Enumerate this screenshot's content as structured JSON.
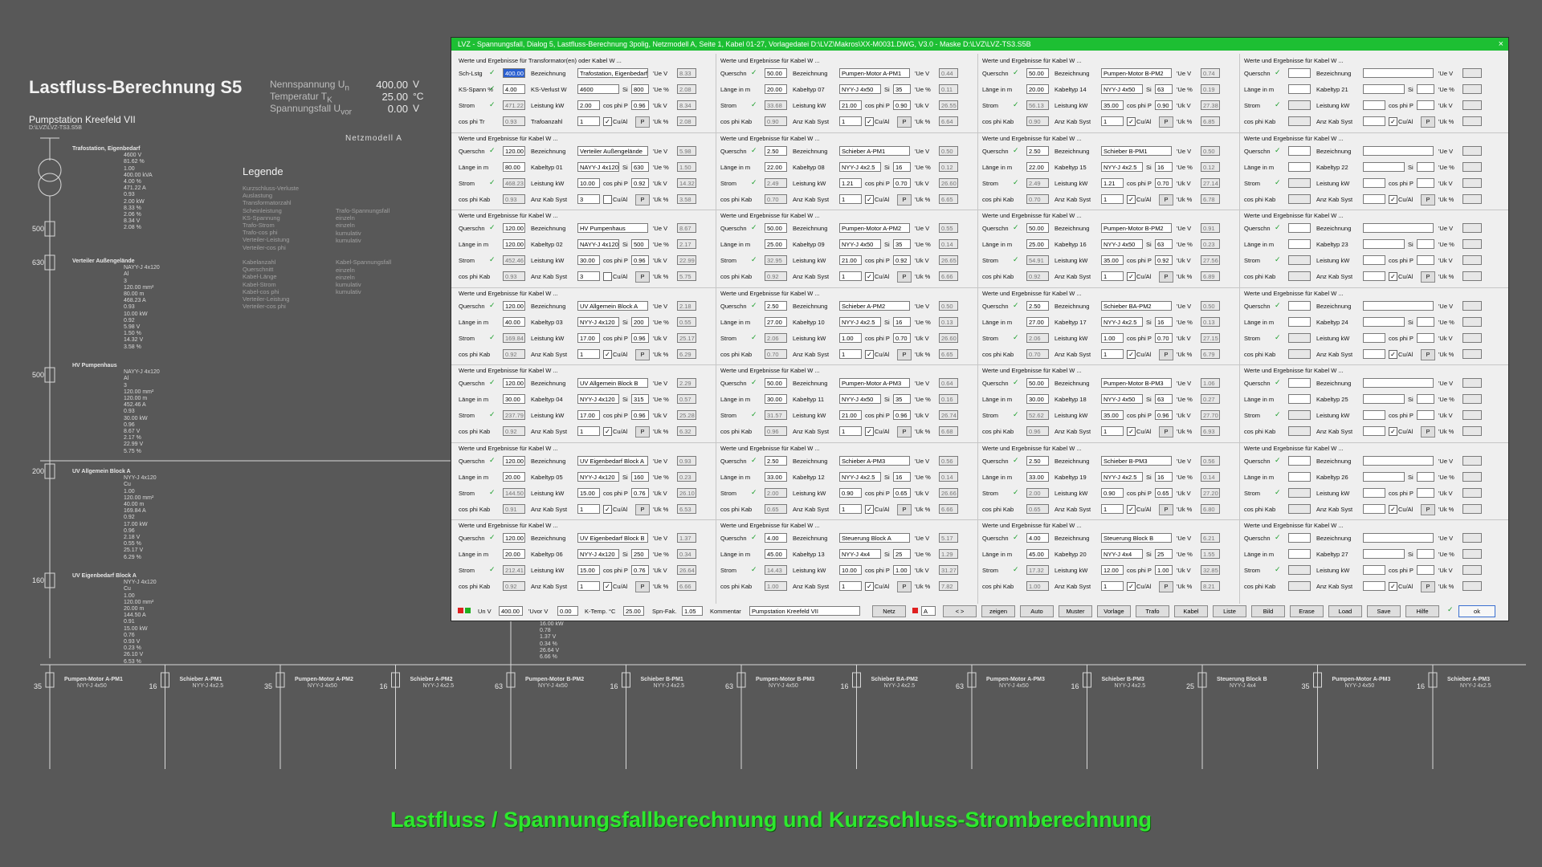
{
  "background": {
    "title": "Lastfluss-Berechnung S5",
    "nominal": [
      {
        "label": "Nennspannung U",
        "sub": "n",
        "value": "400.00",
        "unit": "V"
      },
      {
        "label": "Temperatur T",
        "sub": "K",
        "value": "25.00",
        "unit": "°C"
      },
      {
        "label": "Spannungsfall U",
        "sub": "vor",
        "value": "0.00",
        "unit": "V"
      }
    ],
    "project": "Pumpstation Kreefeld VII",
    "path": "D:\\LVZ\\LVZ-TS3.S5B",
    "netzmodell": "Netzmodell A",
    "legend_title": "Legende",
    "legend_col1": [
      "Kurzschluss-Verluste",
      "Auslastung",
      "Transformatorzahl",
      "Scheinleistung",
      "KS-Spannung",
      "Trafo-Strom",
      "Trafo-cos phi",
      "Verteiler-Leistung",
      "Verteiler-cos phi",
      "",
      "Kabelanzahl",
      "Querschnitt",
      "Kabel-Länge",
      "Kabel-Strom",
      "Kabel-cos phi",
      "Verteiler-Leistung",
      "Verteiler-cos phi"
    ],
    "legend_col2": [
      "Trafo-Spannungsfall",
      "einzeln",
      "einzeln",
      "kumulativ",
      "kumulativ",
      "",
      "",
      "Kabel-Spannungsfall",
      "einzeln",
      "einzeln",
      "kumulativ",
      "kumulativ"
    ],
    "left_nodes": [
      {
        "title": "Trafostation, Eigenbedarf",
        "lines": [
          "4600 V",
          "81.62 %",
          "1.00",
          "400.00 kVA",
          "4.00 %",
          "471.22 A",
          "0.93",
          "2.00 kW",
          "8.33 %",
          "2.06 %",
          "8.34 V",
          "2.08 %"
        ]
      },
      {
        "title": "Verteiler Außengelände",
        "lines": [
          "NAYY-J 4x120",
          "Al",
          "3",
          "120.00 mm²",
          "80.00 m",
          "468.23 A",
          "0.93",
          "10.00 kW",
          "0.92",
          "5.98 V",
          "1.50 %",
          "14.32 V",
          "3.58 %"
        ]
      },
      {
        "title": "HV Pumpenhaus",
        "lines": [
          "NAYY-J 4x120",
          "Al",
          "3",
          "120.00 mm²",
          "120.00 m",
          "452.46 A",
          "0.93",
          "30.00 kW",
          "0.96",
          "8.67 V",
          "2.17 %",
          "22.99 V",
          "5.75 %"
        ]
      },
      {
        "title": "UV Allgemein Block A",
        "lines": [
          "NYY-J 4x120",
          "Cu",
          "1.00",
          "120.00 mm²",
          "40.00 m",
          "169.84 A",
          "0.92",
          "17.00 kW",
          "0.96",
          "2.18 V",
          "0.55 %",
          "25.17 V",
          "6.29 %"
        ]
      },
      {
        "title": "UV Eigenbedarf Block A",
        "lines": [
          "NYY-J 4x120",
          "Cu",
          "1.00",
          "120.00 mm²",
          "20.00 m",
          "144.50 A",
          "0.91",
          "15.00 kW",
          "0.76",
          "0.93 V",
          "0.23 %",
          "26.10 V",
          "6.53 %"
        ]
      }
    ],
    "bus_values": [
      "500",
      "630",
      "500",
      "200",
      "160"
    ],
    "bottom_nodes": [
      {
        "title": "Pumpen-Motor A-PM1",
        "cable": "NYY-J 4x50",
        "cs": "35"
      },
      {
        "title": "Schieber A-PM1",
        "cable": "NYY-J 4x2.5",
        "cs": "16"
      },
      {
        "title": "Pumpen-Motor A-PM2",
        "cable": "NYY-J 4x50",
        "cs": "35"
      },
      {
        "title": "Schieber A-PM2",
        "cable": "NYY-J 4x2.5",
        "cs": "16"
      },
      {
        "title": "Pumpen-Motor B-PM2",
        "cable": "NYY-J 4x50",
        "cs": "63"
      },
      {
        "title": "Schieber B-PM1",
        "cable": "NYY-J 4x2.5",
        "cs": "16"
      },
      {
        "title": "Pumpen-Motor B-PM3",
        "cable": "NYY-J 4x50",
        "cs": "63"
      },
      {
        "title": "Schieber BA-PM2",
        "cable": "NYY-J 4x2.5",
        "cs": "16"
      },
      {
        "title": "Pumpen-Motor A-PM3",
        "cable": "NYY-J 4x50",
        "cs": "63"
      },
      {
        "title": "Schieber B-PM3",
        "cable": "NYY-J 4x2.5",
        "cs": "16"
      },
      {
        "title": "Steuerung Block B",
        "cable": "NYY-J 4x4",
        "cs": "25"
      },
      {
        "title": "Pumpen-Motor A-PM3",
        "cable": "NYY-J 4x50",
        "cs": "35"
      },
      {
        "title": "Schieber A-PM3",
        "cable": "NYY-J 4x2.5",
        "cs": "16"
      }
    ],
    "mid_values": [
      "16.00 kW",
      "0.78",
      "1.37 V",
      "0.34 %",
      "26.64 V",
      "6.66 %"
    ],
    "caption": "Lastfluss / Spannungsfallberechnung und Kurzschluss-Stromberechnung"
  },
  "dialog": {
    "title": "LVZ - Spannungsfall, Dialog 5, Lastfluss-Berechnung 3polig, Netzmodell A, Seite 1, Kabel 01-27, Vorlagedatei D:\\LVZ\\Makros\\XX-M0031.DWG, V3.0 -  Maske D:\\LVZ\\LVZ-TS3.S5B",
    "close": "×",
    "trafo": {
      "header": "Werte und Ergebnisse für Transformator(en) oder Kabel W ...",
      "rows": [
        {
          "lbl": "Sch-Lstg",
          "val": "400.00",
          "ro": false,
          "sel": true
        },
        {
          "lbl": "KS-Spann %",
          "val": "4.00",
          "ro": false
        },
        {
          "lbl": "Strom",
          "val": "471.22",
          "ro": true
        },
        {
          "lbl": "cos phi Tr",
          "val": "0.93",
          "ro": true
        }
      ],
      "bez": "Trafostation, Eigenbedarf",
      "ksv": "4600",
      "si": "800",
      "leist": "2.00",
      "cos": "0.96",
      "anz": "1",
      "anz_label": "Trafoanzahl",
      "ue": [
        "8.33",
        "2.08",
        "8.34",
        "2.08"
      ]
    },
    "labels": {
      "header": "Werte und Ergebnisse für Kabel W ...",
      "querschn": "Querschn",
      "laenge": "Länge in m",
      "strom": "Strom",
      "cosphikab": "cos phi Kab",
      "bez": "Bezeichnung",
      "leistung": "Leistung kW",
      "anzkab": "Anz Kab Syst",
      "si": "Si",
      "cosphip": "cos phi P",
      "cual": "Cu/Al",
      "p": "P",
      "ue": "'Ue V",
      "ueproz": "'Ue %",
      "uk": "'Uk V",
      "ukproz": "'Uk %",
      "sch": "Sch-Lstg",
      "ks": "KS-Spann %",
      "ksv": "KS-Verlust W",
      "cosphitr": "cos phi Tr"
    },
    "cables": [
      {
        "no": "01",
        "q": "120.00",
        "l": "80.00",
        "s": "468.23",
        "c": "0.93",
        "bez": "Verteiler Außengelände",
        "typ": "NAYY-J 4x120",
        "si": "630",
        "lk": "10.00",
        "cp": "0.92",
        "anz": "3",
        "cu": false,
        "ue": [
          "5.98",
          "1.50",
          "14.32",
          "3.58"
        ]
      },
      {
        "no": "02",
        "q": "120.00",
        "l": "120.00",
        "s": "452.46",
        "c": "0.93",
        "bez": "HV Pumpenhaus",
        "typ": "NAYY-J 4x120",
        "si": "500",
        "lk": "30.00",
        "cp": "0.96",
        "anz": "3",
        "cu": false,
        "ue": [
          "8.67",
          "2.17",
          "22.99",
          "5.75"
        ]
      },
      {
        "no": "03",
        "q": "120.00",
        "l": "40.00",
        "s": "169.84",
        "c": "0.92",
        "bez": "UV Allgemein Block A",
        "typ": "NYY-J 4x120",
        "si": "200",
        "lk": "17.00",
        "cp": "0.96",
        "anz": "1",
        "cu": true,
        "ue": [
          "2.18",
          "0.55",
          "25.17",
          "6.29"
        ]
      },
      {
        "no": "04",
        "q": "120.00",
        "l": "30.00",
        "s": "237.79",
        "c": "0.92",
        "bez": "UV Allgemein Block B",
        "typ": "NYY-J 4x120",
        "si": "315",
        "lk": "17.00",
        "cp": "0.96",
        "anz": "1",
        "cu": true,
        "ue": [
          "2.29",
          "0.57",
          "25.28",
          "6.32"
        ]
      },
      {
        "no": "05",
        "q": "120.00",
        "l": "20.00",
        "s": "144.50",
        "c": "0.91",
        "bez": "UV Eigenbedarf Block A",
        "typ": "NYY-J 4x120",
        "si": "160",
        "lk": "15.00",
        "cp": "0.76",
        "anz": "1",
        "cu": true,
        "ue": [
          "0.93",
          "0.23",
          "26.10",
          "6.53"
        ]
      },
      {
        "no": "06",
        "q": "120.00",
        "l": "20.00",
        "s": "212.41",
        "c": "0.92",
        "bez": "UV Eigenbedarf Block B",
        "typ": "NYY-J 4x120",
        "si": "250",
        "lk": "15.00",
        "cp": "0.76",
        "anz": "1",
        "cu": true,
        "ue": [
          "1.37",
          "0.34",
          "26.64",
          "6.66"
        ]
      },
      {
        "no": "07",
        "q": "50.00",
        "l": "20.00",
        "s": "33.68",
        "c": "0.90",
        "bez": "Pumpen-Motor A-PM1",
        "typ": "NYY-J 4x50",
        "si": "35",
        "lk": "21.00",
        "cp": "0.90",
        "anz": "1",
        "cu": true,
        "ue": [
          "0.44",
          "0.11",
          "26.55",
          "6.64"
        ]
      },
      {
        "no": "08",
        "q": "2.50",
        "l": "22.00",
        "s": "2.49",
        "c": "0.70",
        "bez": "Schieber A-PM1",
        "typ": "NYY-J 4x2.5",
        "si": "16",
        "lk": "1.21",
        "cp": "0.70",
        "anz": "1",
        "cu": true,
        "ue": [
          "0.50",
          "0.12",
          "26.60",
          "6.65"
        ]
      },
      {
        "no": "09",
        "q": "50.00",
        "l": "25.00",
        "s": "32.95",
        "c": "0.92",
        "bez": "Pumpen-Motor A-PM2",
        "typ": "NYY-J 4x50",
        "si": "35",
        "lk": "21.00",
        "cp": "0.92",
        "anz": "1",
        "cu": true,
        "ue": [
          "0.55",
          "0.14",
          "26.65",
          "6.66"
        ]
      },
      {
        "no": "10",
        "q": "2.50",
        "l": "27.00",
        "s": "2.06",
        "c": "0.70",
        "bez": "Schieber A-PM2",
        "typ": "NYY-J 4x2.5",
        "si": "16",
        "lk": "1.00",
        "cp": "0.70",
        "anz": "1",
        "cu": true,
        "ue": [
          "0.50",
          "0.13",
          "26.60",
          "6.65"
        ]
      },
      {
        "no": "11",
        "q": "50.00",
        "l": "30.00",
        "s": "31.57",
        "c": "0.96",
        "bez": "Pumpen-Motor A-PM3",
        "typ": "NYY-J 4x50",
        "si": "35",
        "lk": "21.00",
        "cp": "0.96",
        "anz": "1",
        "cu": true,
        "ue": [
          "0.64",
          "0.16",
          "26.74",
          "6.68"
        ]
      },
      {
        "no": "12",
        "q": "2.50",
        "l": "33.00",
        "s": "2.00",
        "c": "0.65",
        "bez": "Schieber A-PM3",
        "typ": "NYY-J 4x2.5",
        "si": "16",
        "lk": "0.90",
        "cp": "0.65",
        "anz": "1",
        "cu": true,
        "ue": [
          "0.56",
          "0.14",
          "26.66",
          "6.66"
        ]
      },
      {
        "no": "13",
        "q": "4.00",
        "l": "45.00",
        "s": "14.43",
        "c": "1.00",
        "bez": "Steuerung Block A",
        "typ": "NYY-J 4x4",
        "si": "25",
        "lk": "10.00",
        "cp": "1.00",
        "anz": "1",
        "cu": true,
        "ue": [
          "5.17",
          "1.29",
          "31.27",
          "7.82"
        ]
      },
      {
        "no": "14",
        "q": "50.00",
        "l": "20.00",
        "s": "56.13",
        "c": "0.90",
        "bez": "Pumpen-Motor B-PM2",
        "typ": "NYY-J 4x50",
        "si": "63",
        "lk": "35.00",
        "cp": "0.90",
        "anz": "1",
        "cu": true,
        "ue": [
          "0.74",
          "0.19",
          "27.38",
          "6.85"
        ]
      },
      {
        "no": "15",
        "q": "2.50",
        "l": "22.00",
        "s": "2.49",
        "c": "0.70",
        "bez": "Schieber B-PM1",
        "typ": "NYY-J 4x2.5",
        "si": "16",
        "lk": "1.21",
        "cp": "0.70",
        "anz": "1",
        "cu": true,
        "ue": [
          "0.50",
          "0.12",
          "27.14",
          "6.78"
        ]
      },
      {
        "no": "16",
        "q": "50.00",
        "l": "25.00",
        "s": "54.91",
        "c": "0.92",
        "bez": "Pumpen-Motor B-PM2",
        "typ": "NYY-J 4x50",
        "si": "63",
        "lk": "35.00",
        "cp": "0.92",
        "anz": "1",
        "cu": true,
        "ue": [
          "0.91",
          "0.23",
          "27.56",
          "6.89"
        ]
      },
      {
        "no": "17",
        "q": "2.50",
        "l": "27.00",
        "s": "2.06",
        "c": "0.70",
        "bez": "Schieber BA-PM2",
        "typ": "NYY-J 4x2.5",
        "si": "16",
        "lk": "1.00",
        "cp": "0.70",
        "anz": "1",
        "cu": true,
        "ue": [
          "0.50",
          "0.13",
          "27.15",
          "6.79"
        ]
      },
      {
        "no": "18",
        "q": "50.00",
        "l": "30.00",
        "s": "52.62",
        "c": "0.96",
        "bez": "Pumpen-Motor B-PM3",
        "typ": "NYY-J 4x50",
        "si": "63",
        "lk": "35.00",
        "cp": "0.96",
        "anz": "1",
        "cu": true,
        "ue": [
          "1.06",
          "0.27",
          "27.70",
          "6.93"
        ]
      },
      {
        "no": "19",
        "q": "2.50",
        "l": "33.00",
        "s": "2.00",
        "c": "0.65",
        "bez": "Schieber B-PM3",
        "typ": "NYY-J 4x2.5",
        "si": "16",
        "lk": "0.90",
        "cp": "0.65",
        "anz": "1",
        "cu": true,
        "ue": [
          "0.56",
          "0.14",
          "27.20",
          "6.80"
        ]
      },
      {
        "no": "20",
        "q": "4.00",
        "l": "45.00",
        "s": "17.32",
        "c": "1.00",
        "bez": "Steuerung Block B",
        "typ": "NYY-J 4x4",
        "si": "25",
        "lk": "12.00",
        "cp": "1.00",
        "anz": "1",
        "cu": true,
        "ue": [
          "6.21",
          "1.55",
          "32.85",
          "8.21"
        ]
      },
      {
        "no": "21",
        "q": "",
        "l": "",
        "s": "",
        "c": "",
        "bez": "",
        "typ": "",
        "si": "",
        "lk": "",
        "cp": "",
        "anz": "",
        "cu": true,
        "ue": [
          "",
          "",
          "",
          ""
        ]
      },
      {
        "no": "22",
        "q": "",
        "l": "",
        "s": "",
        "c": "",
        "bez": "",
        "typ": "",
        "si": "",
        "lk": "",
        "cp": "",
        "anz": "",
        "cu": true,
        "ue": [
          "",
          "",
          "",
          ""
        ]
      },
      {
        "no": "23",
        "q": "",
        "l": "",
        "s": "",
        "c": "",
        "bez": "",
        "typ": "",
        "si": "",
        "lk": "",
        "cp": "",
        "anz": "",
        "cu": true,
        "ue": [
          "",
          "",
          "",
          ""
        ]
      },
      {
        "no": "24",
        "q": "",
        "l": "",
        "s": "",
        "c": "",
        "bez": "",
        "typ": "",
        "si": "",
        "lk": "",
        "cp": "",
        "anz": "",
        "cu": true,
        "ue": [
          "",
          "",
          "",
          ""
        ]
      },
      {
        "no": "25",
        "q": "",
        "l": "",
        "s": "",
        "c": "",
        "bez": "",
        "typ": "",
        "si": "",
        "lk": "",
        "cp": "",
        "anz": "",
        "cu": true,
        "ue": [
          "",
          "",
          "",
          ""
        ]
      },
      {
        "no": "26",
        "q": "",
        "l": "",
        "s": "",
        "c": "",
        "bez": "",
        "typ": "",
        "si": "",
        "lk": "",
        "cp": "",
        "anz": "",
        "cu": true,
        "ue": [
          "",
          "",
          "",
          ""
        ]
      },
      {
        "no": "27",
        "q": "",
        "l": "",
        "s": "",
        "c": "",
        "bez": "",
        "typ": "",
        "si": "",
        "lk": "",
        "cp": "",
        "anz": "",
        "cu": true,
        "ue": [
          "",
          "",
          "",
          ""
        ]
      }
    ],
    "footer": {
      "un_label": "Un V",
      "un": "400.00",
      "uvor_label": "'Uvor V",
      "uvor": "0.00",
      "ktemp_label": "K-Temp. °C",
      "ktemp": "25.00",
      "spn_label": "Spn-Fak.",
      "spn": "1.05",
      "komm_label": "Kommentar",
      "komm": "Pumpstation Kreefeld VII",
      "netz": "Netz",
      "netzwert": "A",
      "nav": "< >",
      "buttons": [
        "zeigen",
        "Auto",
        "Muster",
        "Vorlage",
        "Trafo",
        "Kabel",
        "Liste",
        "Bild",
        "Erase",
        "Load",
        "Save",
        "Hilfe"
      ],
      "ok": "ok"
    }
  }
}
